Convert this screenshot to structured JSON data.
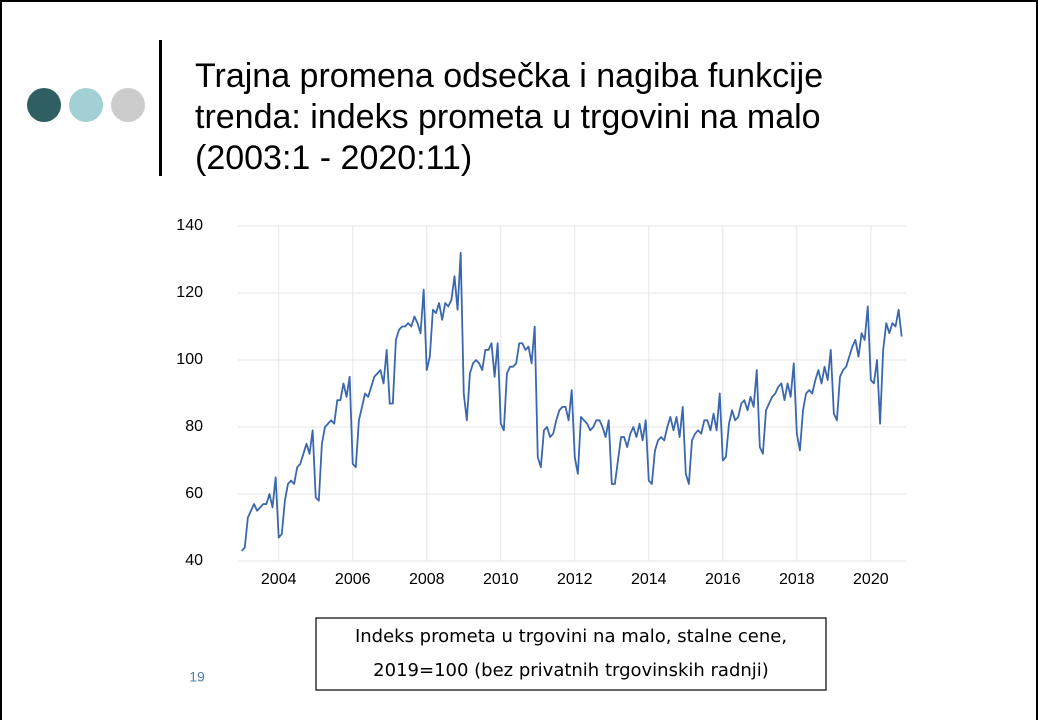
{
  "slide": {
    "title_lines": [
      "Trajna promena odsečka i nagiba funkcije",
      "trenda: indeks prometa u trgovini na malo",
      "(2003:1 - 2020:11)"
    ],
    "page_number": "19"
  },
  "chart_data": {
    "type": "line",
    "color": "#3a67ad",
    "grid": true,
    "caption_lines": [
      "Indeks prometa u trgovini na malo, stalne cene,",
      "2019=100 (bez privatnih trgovinskih radnji)"
    ],
    "xlim": [
      2002.9,
      2020.95
    ],
    "xticks": [
      2004,
      2006,
      2008,
      2010,
      2012,
      2014,
      2016,
      2018,
      2020
    ],
    "ylim": [
      40,
      140
    ],
    "yticks": [
      40,
      60,
      80,
      100,
      120,
      140
    ],
    "x": [
      2003,
      2003.083,
      2003.167,
      2003.25,
      2003.333,
      2003.417,
      2003.5,
      2003.583,
      2003.667,
      2003.75,
      2003.833,
      2003.917,
      2004,
      2004.083,
      2004.167,
      2004.25,
      2004.333,
      2004.417,
      2004.5,
      2004.583,
      2004.667,
      2004.75,
      2004.833,
      2004.917,
      2005,
      2005.083,
      2005.167,
      2005.25,
      2005.333,
      2005.417,
      2005.5,
      2005.583,
      2005.667,
      2005.75,
      2005.833,
      2005.917,
      2006,
      2006.083,
      2006.167,
      2006.25,
      2006.333,
      2006.417,
      2006.5,
      2006.583,
      2006.667,
      2006.75,
      2006.833,
      2006.917,
      2007,
      2007.083,
      2007.167,
      2007.25,
      2007.333,
      2007.417,
      2007.5,
      2007.583,
      2007.667,
      2007.75,
      2007.833,
      2007.917,
      2008,
      2008.083,
      2008.167,
      2008.25,
      2008.333,
      2008.417,
      2008.5,
      2008.583,
      2008.667,
      2008.75,
      2008.833,
      2008.917,
      2009,
      2009.083,
      2009.167,
      2009.25,
      2009.333,
      2009.417,
      2009.5,
      2009.583,
      2009.667,
      2009.75,
      2009.833,
      2009.917,
      2010,
      2010.083,
      2010.167,
      2010.25,
      2010.333,
      2010.417,
      2010.5,
      2010.583,
      2010.667,
      2010.75,
      2010.833,
      2010.917,
      2011,
      2011.083,
      2011.167,
      2011.25,
      2011.333,
      2011.417,
      2011.5,
      2011.583,
      2011.667,
      2011.75,
      2011.833,
      2011.917,
      2012,
      2012.083,
      2012.167,
      2012.25,
      2012.333,
      2012.417,
      2012.5,
      2012.583,
      2012.667,
      2012.75,
      2012.833,
      2012.917,
      2013,
      2013.083,
      2013.167,
      2013.25,
      2013.333,
      2013.417,
      2013.5,
      2013.583,
      2013.667,
      2013.75,
      2013.833,
      2013.917,
      2014,
      2014.083,
      2014.167,
      2014.25,
      2014.333,
      2014.417,
      2014.5,
      2014.583,
      2014.667,
      2014.75,
      2014.833,
      2014.917,
      2015,
      2015.083,
      2015.167,
      2015.25,
      2015.333,
      2015.417,
      2015.5,
      2015.583,
      2015.667,
      2015.75,
      2015.833,
      2015.917,
      2016,
      2016.083,
      2016.167,
      2016.25,
      2016.333,
      2016.417,
      2016.5,
      2016.583,
      2016.667,
      2016.75,
      2016.833,
      2016.917,
      2017,
      2017.083,
      2017.167,
      2017.25,
      2017.333,
      2017.417,
      2017.5,
      2017.583,
      2017.667,
      2017.75,
      2017.833,
      2017.917,
      2018,
      2018.083,
      2018.167,
      2018.25,
      2018.333,
      2018.417,
      2018.5,
      2018.583,
      2018.667,
      2018.75,
      2018.833,
      2018.917,
      2019,
      2019.083,
      2019.167,
      2019.25,
      2019.333,
      2019.417,
      2019.5,
      2019.583,
      2019.667,
      2019.75,
      2019.833,
      2019.917,
      2020,
      2020.083,
      2020.167,
      2020.25,
      2020.333,
      2020.417,
      2020.5,
      2020.583,
      2020.667,
      2020.75,
      2020.833
    ],
    "values": [
      43,
      44,
      53,
      55,
      57,
      55,
      56,
      57,
      57,
      60,
      56,
      65,
      47,
      48,
      58,
      63,
      64,
      63,
      68,
      69,
      72,
      75,
      72,
      79,
      59,
      58,
      75,
      80,
      81,
      82,
      81,
      88,
      88,
      93,
      89,
      95,
      69,
      68,
      82,
      86,
      90,
      89,
      92,
      95,
      96,
      97,
      93,
      103,
      87,
      87,
      106,
      109,
      110,
      110,
      111,
      110,
      113,
      111,
      108,
      121,
      97,
      101,
      115,
      114,
      117,
      112,
      117,
      116,
      118,
      125,
      115,
      132,
      90,
      82,
      96,
      99,
      100,
      99,
      97,
      103,
      103,
      105,
      95,
      105,
      81,
      79,
      96,
      98,
      98,
      99,
      105,
      105,
      103,
      104,
      99,
      110,
      71,
      68,
      79,
      80,
      77,
      78,
      82,
      85,
      86,
      86,
      82,
      91,
      71,
      66,
      83,
      82,
      81,
      79,
      80,
      82,
      82,
      80,
      77,
      82,
      63,
      63,
      70,
      77,
      77,
      74,
      78,
      80,
      77,
      81,
      76,
      82,
      64,
      63,
      73,
      76,
      77,
      76,
      80,
      83,
      79,
      83,
      77,
      86,
      66,
      63,
      76,
      78,
      79,
      78,
      82,
      82,
      79,
      84,
      79,
      90,
      70,
      71,
      81,
      85,
      82,
      83,
      87,
      88,
      85,
      89,
      86,
      97,
      74,
      72,
      85,
      87,
      89,
      90,
      92,
      93,
      88,
      93,
      89,
      99,
      78,
      73,
      85,
      90,
      91,
      90,
      94,
      97,
      93,
      98,
      94,
      103,
      84,
      82,
      95,
      97,
      98,
      101,
      104,
      106,
      101,
      108,
      106,
      116,
      94,
      93,
      100,
      81,
      103,
      111,
      108,
      111,
      110,
      115,
      107
    ]
  }
}
